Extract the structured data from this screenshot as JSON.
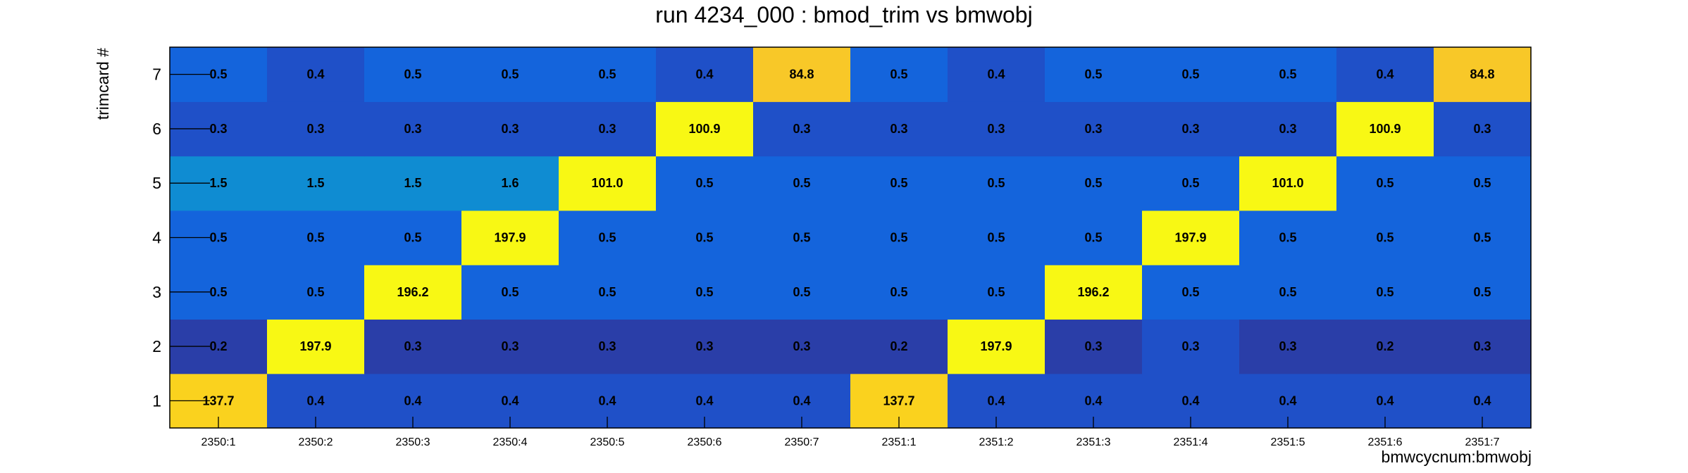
{
  "chart_data": {
    "type": "heatmap",
    "title": "run 4234_000 : bmod_trim vs bmwobj",
    "xlabel": "bmwcycnum:bmwobj",
    "ylabel": "trimcard #",
    "x_categories": [
      "2350:1",
      "2350:2",
      "2350:3",
      "2350:4",
      "2350:5",
      "2350:6",
      "2350:7",
      "2351:1",
      "2351:2",
      "2351:3",
      "2351:4",
      "2351:5",
      "2351:6",
      "2351:7"
    ],
    "y_categories": [
      "1",
      "2",
      "3",
      "4",
      "5",
      "6",
      "7"
    ],
    "values": [
      [
        "137.7",
        "0.4",
        "0.4",
        "0.4",
        "0.4",
        "0.4",
        "0.4",
        "137.7",
        "0.4",
        "0.4",
        "0.4",
        "0.4",
        "0.4",
        "0.4"
      ],
      [
        "0.2",
        "197.9",
        "0.3",
        "0.3",
        "0.3",
        "0.3",
        "0.3",
        "0.2",
        "197.9",
        "0.3",
        "0.3",
        "0.3",
        "0.2",
        "0.3"
      ],
      [
        "0.5",
        "0.5",
        "196.2",
        "0.5",
        "0.5",
        "0.5",
        "0.5",
        "0.5",
        "0.5",
        "196.2",
        "0.5",
        "0.5",
        "0.5",
        "0.5"
      ],
      [
        "0.5",
        "0.5",
        "0.5",
        "197.9",
        "0.5",
        "0.5",
        "0.5",
        "0.5",
        "0.5",
        "0.5",
        "197.9",
        "0.5",
        "0.5",
        "0.5"
      ],
      [
        "1.5",
        "1.5",
        "1.5",
        "1.6",
        "101.0",
        "0.5",
        "0.5",
        "0.5",
        "0.5",
        "0.5",
        "0.5",
        "101.0",
        "0.5",
        "0.5"
      ],
      [
        "0.3",
        "0.3",
        "0.3",
        "0.3",
        "0.3",
        "100.9",
        "0.3",
        "0.3",
        "0.3",
        "0.3",
        "0.3",
        "0.3",
        "100.9",
        "0.3"
      ],
      [
        "0.5",
        "0.4",
        "0.5",
        "0.5",
        "0.5",
        "0.4",
        "84.8",
        "0.5",
        "0.4",
        "0.5",
        "0.5",
        "0.5",
        "0.4",
        "84.8"
      ]
    ],
    "colors": {
      "low_dark": "#2a3ea8",
      "low": "#1f50c8",
      "mid_low": "#1464dc",
      "mid": "#0f8cd2",
      "high_mid": "#fad21e",
      "high_orange": "#f8c828",
      "high": "#f8f814",
      "frame": "#000000"
    }
  }
}
